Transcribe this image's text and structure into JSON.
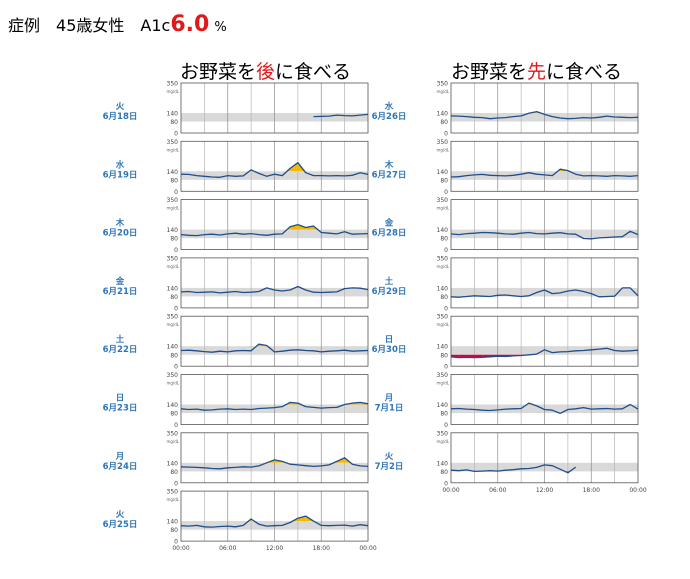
{
  "title": {
    "prefix": "症例",
    "subject": "45歳女性",
    "a1c_label": "A1c",
    "a1c_value": "6.0",
    "a1c_unit": "%"
  },
  "columns": [
    {
      "head_pre": "お野菜を",
      "head_hl": "後",
      "head_mid": "に",
      "head_post": "食べる"
    },
    {
      "head_pre": "お野菜を",
      "head_hl": "先",
      "head_mid": "に",
      "head_post": "食べる"
    }
  ],
  "colors": {
    "line": "#1f4e8c",
    "high": "#f5b800",
    "low": "#d6003b",
    "band": "#d9d9d9",
    "label": "#2e75b6",
    "accent": "#e0191b"
  },
  "axis": {
    "y_ticks": [
      0,
      80,
      140,
      350
    ],
    "unit": "mg/dL",
    "target_range": [
      80,
      140
    ],
    "x_ticks": [
      "00:00",
      "06:00",
      "12:00",
      "18:00",
      "00:00"
    ]
  },
  "chart_data": {
    "type": "line",
    "xlabel": "",
    "ylabel": "mg/dL",
    "x_hours": [
      0,
      1,
      2,
      3,
      4,
      5,
      6,
      7,
      8,
      9,
      10,
      11,
      12,
      13,
      14,
      15,
      16,
      17,
      18,
      19,
      20,
      21,
      22,
      23,
      24
    ],
    "ylim": [
      0,
      350
    ],
    "panels": [
      {
        "column": 0,
        "day": "火",
        "date": "6月18日",
        "start_hour": 17,
        "values": [
          null,
          null,
          null,
          null,
          null,
          null,
          null,
          null,
          null,
          null,
          null,
          null,
          null,
          null,
          null,
          null,
          null,
          115,
          116,
          118,
          125,
          122,
          120,
          125,
          130
        ]
      },
      {
        "column": 0,
        "day": "水",
        "date": "6月19日",
        "values": [
          120,
          118,
          110,
          105,
          100,
          98,
          110,
          105,
          108,
          150,
          125,
          105,
          120,
          110,
          160,
          200,
          130,
          110,
          110,
          108,
          110,
          108,
          112,
          130,
          118
        ]
      },
      {
        "column": 0,
        "day": "木",
        "date": "6月20日",
        "values": [
          105,
          100,
          98,
          105,
          108,
          102,
          110,
          115,
          108,
          112,
          105,
          100,
          108,
          110,
          160,
          175,
          155,
          165,
          120,
          115,
          110,
          125,
          108,
          110,
          112
        ]
      },
      {
        "column": 0,
        "day": "金",
        "date": "6月21日",
        "values": [
          112,
          115,
          108,
          110,
          112,
          105,
          110,
          115,
          108,
          110,
          115,
          140,
          125,
          118,
          125,
          150,
          125,
          110,
          108,
          110,
          112,
          135,
          140,
          138,
          128
        ]
      },
      {
        "column": 0,
        "day": "土",
        "date": "6月22日",
        "values": [
          110,
          112,
          108,
          102,
          98,
          105,
          100,
          108,
          110,
          108,
          155,
          145,
          100,
          105,
          112,
          115,
          110,
          108,
          100,
          105,
          108,
          112,
          105,
          108,
          110
        ]
      },
      {
        "column": 0,
        "day": "日",
        "date": "6月23日",
        "values": [
          110,
          105,
          108,
          100,
          102,
          108,
          110,
          105,
          108,
          105,
          112,
          115,
          118,
          125,
          155,
          150,
          125,
          120,
          115,
          118,
          120,
          140,
          150,
          155,
          145
        ]
      },
      {
        "column": 0,
        "day": "月",
        "date": "6月24日",
        "values": [
          112,
          110,
          108,
          105,
          100,
          98,
          105,
          108,
          112,
          110,
          118,
          140,
          160,
          150,
          130,
          125,
          120,
          115,
          118,
          125,
          150,
          175,
          130,
          118,
          115
        ]
      },
      {
        "column": 0,
        "day": "火",
        "date": "6月25日",
        "values": [
          108,
          105,
          110,
          100,
          98,
          102,
          105,
          100,
          110,
          155,
          118,
          105,
          108,
          110,
          130,
          160,
          175,
          140,
          110,
          108,
          110,
          112,
          105,
          115,
          108
        ]
      },
      {
        "column": 1,
        "day": "水",
        "date": "6月26日",
        "values": [
          120,
          118,
          115,
          110,
          108,
          100,
          105,
          108,
          115,
          120,
          138,
          150,
          130,
          115,
          105,
          100,
          102,
          108,
          105,
          110,
          118,
          112,
          110,
          108,
          110
        ]
      },
      {
        "column": 1,
        "day": "木",
        "date": "6月27日",
        "values": [
          100,
          102,
          110,
          115,
          118,
          112,
          110,
          108,
          112,
          120,
          130,
          120,
          115,
          110,
          155,
          145,
          120,
          108,
          110,
          108,
          105,
          110,
          108,
          105,
          110
        ]
      },
      {
        "column": 1,
        "day": "金",
        "date": "6月28日",
        "values": [
          110,
          105,
          112,
          115,
          120,
          118,
          115,
          110,
          108,
          115,
          120,
          112,
          110,
          115,
          118,
          110,
          108,
          78,
          75,
          82,
          85,
          88,
          90,
          128,
          105
        ]
      },
      {
        "column": 1,
        "day": "土",
        "date": "6月29日",
        "values": [
          78,
          75,
          80,
          85,
          82,
          80,
          88,
          90,
          85,
          80,
          85,
          108,
          125,
          100,
          105,
          118,
          125,
          115,
          100,
          78,
          80,
          82,
          140,
          140,
          85
        ]
      },
      {
        "column": 1,
        "day": "日",
        "date": "6月30日",
        "values": [
          65,
          60,
          62,
          60,
          62,
          65,
          70,
          68,
          72,
          75,
          80,
          85,
          115,
          95,
          100,
          102,
          108,
          110,
          115,
          120,
          125,
          110,
          105,
          108,
          112
        ]
      },
      {
        "column": 1,
        "day": "月",
        "date": "7月1日",
        "values": [
          110,
          112,
          108,
          105,
          100,
          98,
          102,
          108,
          110,
          112,
          150,
          130,
          105,
          100,
          78,
          105,
          110,
          118,
          108,
          110,
          112,
          108,
          110,
          140,
          108
        ]
      },
      {
        "column": 1,
        "day": "火",
        "date": "7月2日",
        "end_hour": 16,
        "values": [
          88,
          85,
          90,
          80,
          82,
          85,
          82,
          88,
          92,
          98,
          100,
          108,
          125,
          120,
          95,
          70,
          110,
          null,
          null,
          null,
          null,
          null,
          null,
          null,
          null
        ]
      }
    ]
  }
}
